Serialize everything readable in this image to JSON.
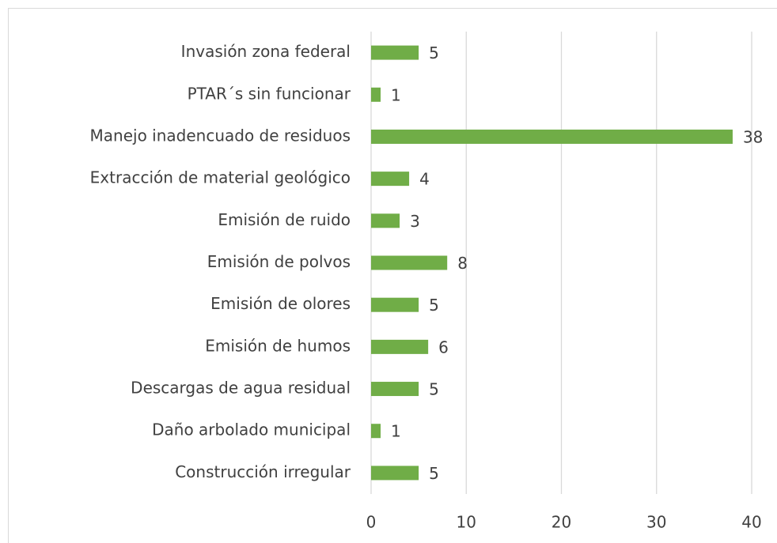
{
  "chart_data": {
    "type": "bar",
    "orientation": "horizontal",
    "categories": [
      "Invasión zona federal",
      "PTAR´s sin funcionar",
      "Manejo inadencuado de residuos",
      "Extracción de material geológico",
      "Emisión de ruido",
      "Emisión de polvos",
      "Emisión de olores",
      "Emisión de humos",
      "Descargas de agua residual",
      "Daño arbolado municipal",
      "Construcción irregular"
    ],
    "values": [
      5,
      1,
      38,
      4,
      3,
      8,
      5,
      6,
      5,
      1,
      5
    ],
    "color": "#70ad47",
    "xlim": [
      0,
      40
    ],
    "xticks": [
      0,
      10,
      20,
      30,
      40
    ],
    "grid": true
  }
}
